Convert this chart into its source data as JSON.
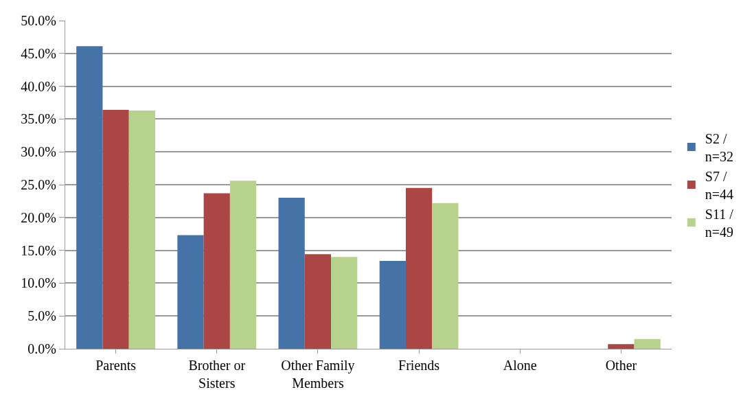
{
  "chart_data": {
    "type": "bar",
    "categories": [
      "Parents",
      "Brother or\nSisters",
      "Other Family\nMembers",
      "Friends",
      "Alone",
      "Other"
    ],
    "series": [
      {
        "name": "S2 /\nn=32",
        "color": "#4572a7",
        "values": [
          46.1,
          17.3,
          23.0,
          13.4,
          0,
          0
        ]
      },
      {
        "name": "S7 /\nn=44",
        "color": "#aa4643",
        "values": [
          36.4,
          23.7,
          14.4,
          24.5,
          0,
          0.7
        ]
      },
      {
        "name": "S11 /\nn=49",
        "color": "#b6d28d",
        "values": [
          36.3,
          25.6,
          14.0,
          22.2,
          0,
          1.5
        ]
      }
    ],
    "ylim": [
      0,
      50
    ],
    "yticks": [
      {
        "value": 0,
        "label": "0.0%"
      },
      {
        "value": 5,
        "label": "5.0%"
      },
      {
        "value": 10,
        "label": "10.0%"
      },
      {
        "value": 15,
        "label": "15.0%"
      },
      {
        "value": 20,
        "label": "20.0%"
      },
      {
        "value": 25,
        "label": "25.0%"
      },
      {
        "value": 30,
        "label": "30.0%"
      },
      {
        "value": 35,
        "label": "35.0%"
      },
      {
        "value": 40,
        "label": "40.0%"
      },
      {
        "value": 45,
        "label": "45.0%"
      },
      {
        "value": 50,
        "label": "50.0%"
      }
    ],
    "grid": "y",
    "legend": "right"
  }
}
